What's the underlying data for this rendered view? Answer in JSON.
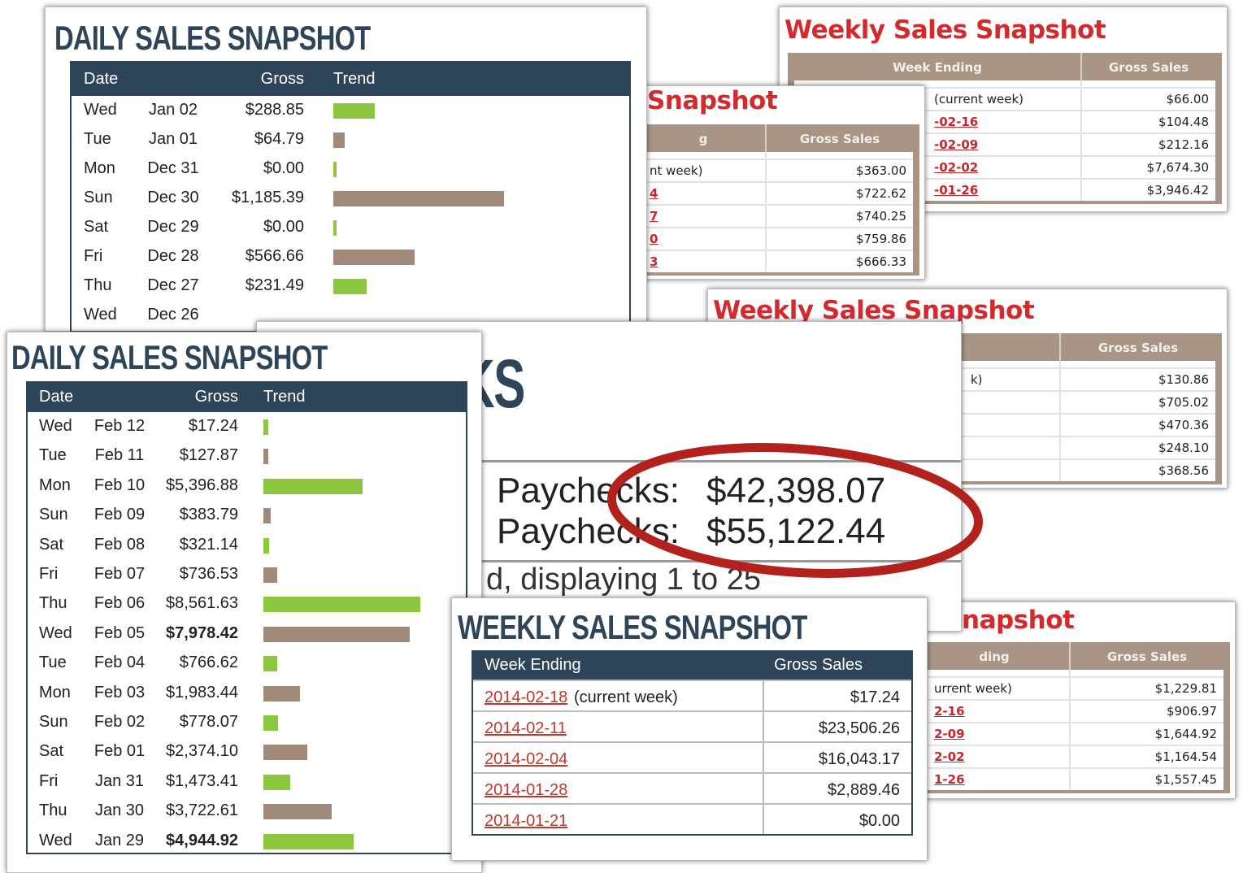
{
  "colors": {
    "navy": "#2e4459",
    "green": "#8dc63f",
    "brown": "#a08a7a",
    "red": "#d42a2e",
    "tan": "#a89585"
  },
  "daily_a": {
    "title": "DAILY SALES SNAPSHOT",
    "headers": {
      "date": "Date",
      "gross": "Gross",
      "trend": "Trend"
    },
    "max": 1185.39,
    "rows": [
      {
        "day": "Wed",
        "date": "Jan 02",
        "gross": "$288.85",
        "value": 288.85,
        "color": "green"
      },
      {
        "day": "Tue",
        "date": "Jan 01",
        "gross": "$64.79",
        "value": 64.79,
        "color": "brown"
      },
      {
        "day": "Mon",
        "date": "Dec 31",
        "gross": "$0.00",
        "value": 0,
        "color": "green"
      },
      {
        "day": "Sun",
        "date": "Dec 30",
        "gross": "$1,185.39",
        "value": 1185.39,
        "color": "brown"
      },
      {
        "day": "Sat",
        "date": "Dec 29",
        "gross": "$0.00",
        "value": 0,
        "color": "green"
      },
      {
        "day": "Fri",
        "date": "Dec 28",
        "gross": "$566.66",
        "value": 566.66,
        "color": "brown"
      },
      {
        "day": "Thu",
        "date": "Dec 27",
        "gross": "$231.49",
        "value": 231.49,
        "color": "green"
      },
      {
        "day": "Wed",
        "date": "Dec 26",
        "gross": "",
        "value": 0,
        "color": "brown"
      }
    ]
  },
  "daily_b": {
    "title": "DAILY SALES SNAPSHOT",
    "headers": {
      "date": "Date",
      "gross": "Gross",
      "trend": "Trend"
    },
    "max": 8561.63,
    "rows": [
      {
        "day": "Wed",
        "date": "Feb 12",
        "gross": "$17.24",
        "value": 17.24,
        "color": "green"
      },
      {
        "day": "Tue",
        "date": "Feb 11",
        "gross": "$127.87",
        "value": 127.87,
        "color": "brown"
      },
      {
        "day": "Mon",
        "date": "Feb 10",
        "gross": "$5,396.88",
        "value": 5396.88,
        "color": "green"
      },
      {
        "day": "Sun",
        "date": "Feb 09",
        "gross": "$383.79",
        "value": 383.79,
        "color": "brown"
      },
      {
        "day": "Sat",
        "date": "Feb 08",
        "gross": "$321.14",
        "value": 321.14,
        "color": "green"
      },
      {
        "day": "Fri",
        "date": "Feb 07",
        "gross": "$736.53",
        "value": 736.53,
        "color": "brown"
      },
      {
        "day": "Thu",
        "date": "Feb 06",
        "gross": "$8,561.63",
        "value": 8561.63,
        "color": "green"
      },
      {
        "day": "Wed",
        "date": "Feb 05",
        "gross": "$7,978.42",
        "value": 7978.42,
        "color": "brown",
        "bold": true
      },
      {
        "day": "Tue",
        "date": "Feb 04",
        "gross": "$766.62",
        "value": 766.62,
        "color": "green"
      },
      {
        "day": "Mon",
        "date": "Feb 03",
        "gross": "$1,983.44",
        "value": 1983.44,
        "color": "brown"
      },
      {
        "day": "Sun",
        "date": "Feb 02",
        "gross": "$778.07",
        "value": 778.07,
        "color": "green"
      },
      {
        "day": "Sat",
        "date": "Feb 01",
        "gross": "$2,374.10",
        "value": 2374.1,
        "color": "brown"
      },
      {
        "day": "Fri",
        "date": "Jan 31",
        "gross": "$1,473.41",
        "value": 1473.41,
        "color": "green"
      },
      {
        "day": "Thu",
        "date": "Jan 30",
        "gross": "$3,722.61",
        "value": 3722.61,
        "color": "brown"
      },
      {
        "day": "Wed",
        "date": "Jan 29",
        "gross": "$4,944.92",
        "value": 4944.92,
        "color": "green",
        "bold": true
      }
    ]
  },
  "weekly_b": {
    "title": "Weekly Sales Snapshot",
    "headers": {
      "week": "Week Ending",
      "gross": "Gross Sales"
    },
    "rows": [
      {
        "week": "(current week)",
        "link": false,
        "gross": "$66.00"
      },
      {
        "week": "-02-16",
        "link": true,
        "gross": "$104.48"
      },
      {
        "week": "-02-09",
        "link": true,
        "gross": "$212.16"
      },
      {
        "week": "-02-02",
        "link": true,
        "gross": "$7,674.30"
      },
      {
        "week": "-01-26",
        "link": true,
        "gross": "$3,946.42"
      }
    ]
  },
  "weekly_c": {
    "title": "Snapshot",
    "headers": {
      "week": "g",
      "gross": "Gross Sales"
    },
    "rows": [
      {
        "week": "nt week)",
        "link": false,
        "gross": "$363.00"
      },
      {
        "week": "4",
        "link": true,
        "gross": "$722.62"
      },
      {
        "week": "7",
        "link": true,
        "gross": "$740.25"
      },
      {
        "week": "0",
        "link": true,
        "gross": "$759.86"
      },
      {
        "week": "3",
        "link": true,
        "gross": "$666.33"
      }
    ]
  },
  "weekly_d": {
    "title": "Weekly Sales Snapshot",
    "headers": {
      "week": "",
      "gross": "Gross Sales"
    },
    "rows": [
      {
        "week": "k)",
        "link": false,
        "gross": "$130.86"
      },
      {
        "week": "",
        "link": false,
        "gross": "$705.02"
      },
      {
        "week": "",
        "link": false,
        "gross": "$470.36"
      },
      {
        "week": "",
        "link": false,
        "gross": "$248.10"
      },
      {
        "week": "",
        "link": false,
        "gross": "$368.56"
      }
    ]
  },
  "weekly_h": {
    "title": "napshot",
    "headers": {
      "week": "ding",
      "gross": "Gross Sales"
    },
    "rows": [
      {
        "week": "urrent week)",
        "link": false,
        "gross": "$1,229.81"
      },
      {
        "week": "2-16",
        "link": true,
        "gross": "$906.97"
      },
      {
        "week": "2-09",
        "link": true,
        "gross": "$1,644.92"
      },
      {
        "week": "2-02",
        "link": true,
        "gross": "$1,164.54"
      },
      {
        "week": "1-26",
        "link": true,
        "gross": "$1,557.45"
      }
    ]
  },
  "paychecks": {
    "heading": "KS",
    "line1_label": "Paychecks:",
    "line1_value": "$42,398.07",
    "line2_label": "Paychecks:",
    "line2_value": "$55,122.44",
    "footer": "d, displaying 1 to 25"
  },
  "weekly_navy": {
    "title": "WEEKLY SALES SNAPSHOT",
    "headers": {
      "week": "Week Ending",
      "gross": "Gross Sales"
    },
    "current_note": "(current week)",
    "rows": [
      {
        "week": "2014-02-18",
        "current": true,
        "gross": "$17.24"
      },
      {
        "week": "2014-02-11",
        "gross": "$23,506.26"
      },
      {
        "week": "2014-02-04",
        "gross": "$16,043.17"
      },
      {
        "week": "2014-01-28",
        "gross": "$2,889.46"
      },
      {
        "week": "2014-01-21",
        "gross": "$0.00"
      }
    ]
  }
}
